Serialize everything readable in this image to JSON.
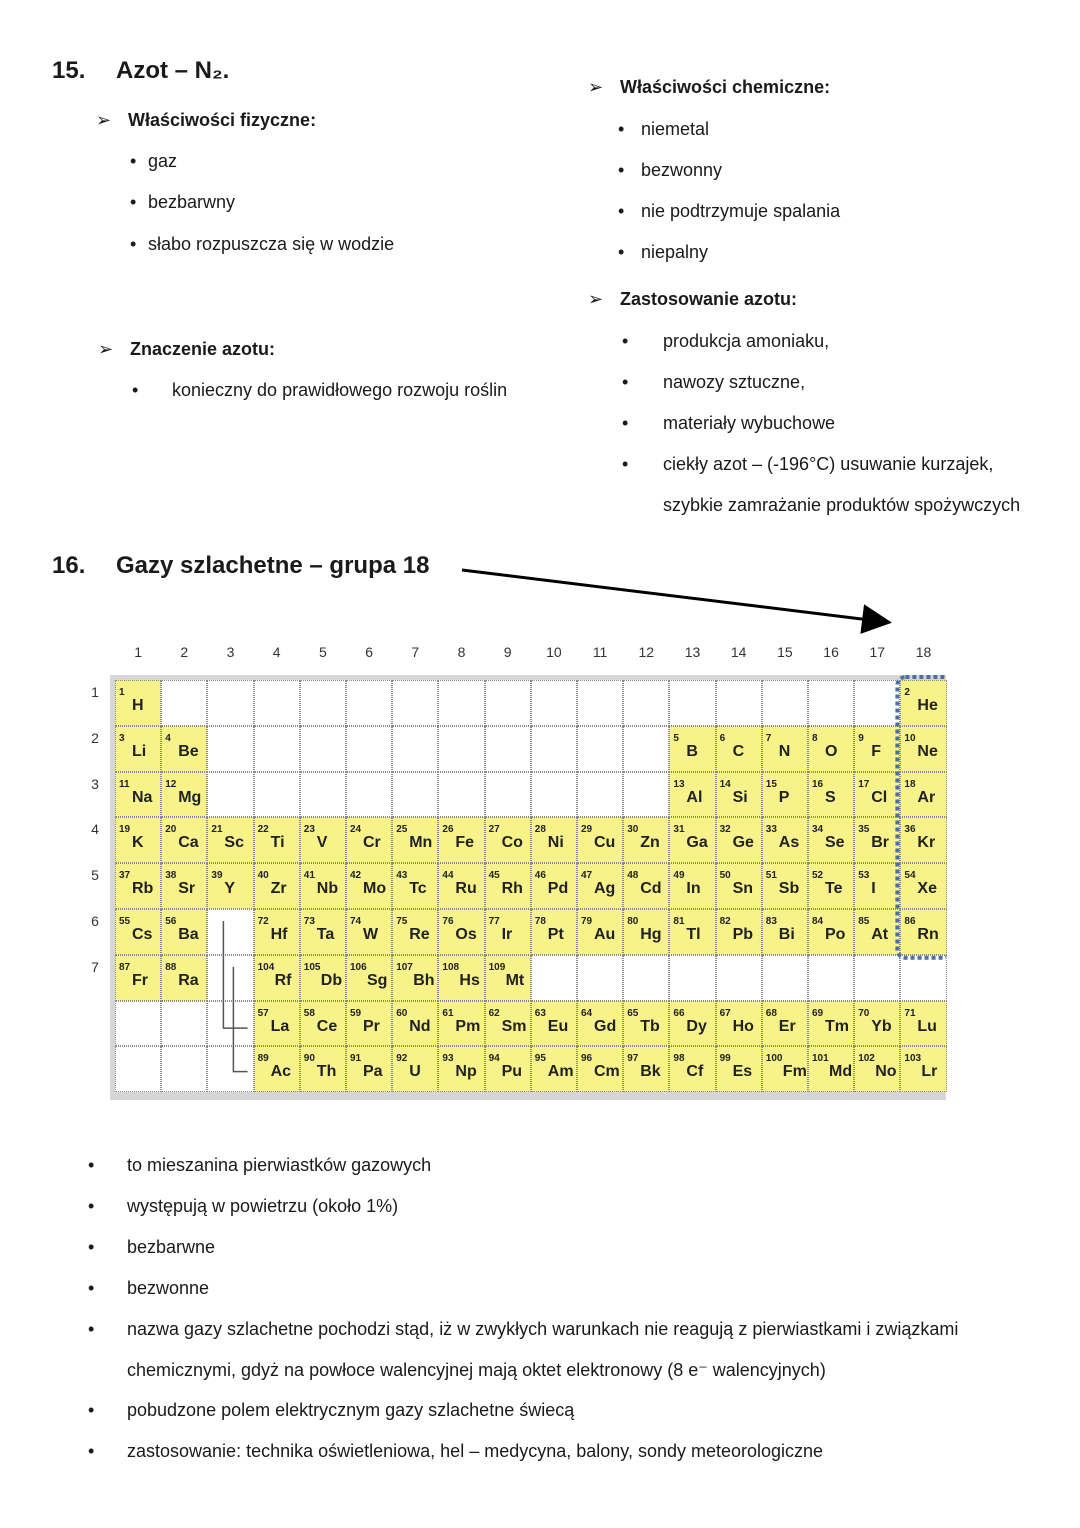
{
  "section15": {
    "number": "15.",
    "title": "Azot – N₂.",
    "physical": {
      "heading": "Właściwości fizyczne:",
      "items": [
        "gaz",
        "bezbarwny",
        "słabo rozpuszcza się w wodzie"
      ]
    },
    "significance": {
      "heading": "Znaczenie azotu:",
      "items": [
        "konieczny do prawidłowego rozwoju roślin"
      ]
    },
    "chemical": {
      "heading": "Właściwości chemiczne:",
      "items": [
        "niemetal",
        "bezwonny",
        "nie podtrzymuje spalania",
        "niepalny"
      ]
    },
    "uses": {
      "heading": "Zastosowanie azotu:",
      "items": [
        "produkcja amoniaku,",
        "nawozy sztuczne,",
        "materiały wybuchowe",
        "ciekły azot – (-196°C) usuwanie kurzajek, szybkie zamrażanie produktów spożywczych"
      ]
    }
  },
  "section16": {
    "number": "16.",
    "title": "Gazy szlachetne – grupa 18",
    "table": {
      "groups": [
        1,
        2,
        3,
        4,
        5,
        6,
        7,
        8,
        9,
        10,
        11,
        12,
        13,
        14,
        15,
        16,
        17,
        18
      ],
      "periods": [
        1,
        2,
        3,
        4,
        5,
        6,
        7
      ],
      "rows": [
        [
          {
            "number": 1,
            "symbol": "H"
          },
          null,
          null,
          null,
          null,
          null,
          null,
          null,
          null,
          null,
          null,
          null,
          null,
          null,
          null,
          null,
          null,
          {
            "number": 2,
            "symbol": "He"
          }
        ],
        [
          {
            "number": 3,
            "symbol": "Li"
          },
          {
            "number": 4,
            "symbol": "Be"
          },
          null,
          null,
          null,
          null,
          null,
          null,
          null,
          null,
          null,
          null,
          {
            "number": 5,
            "symbol": "B"
          },
          {
            "number": 6,
            "symbol": "C"
          },
          {
            "number": 7,
            "symbol": "N"
          },
          {
            "number": 8,
            "symbol": "O"
          },
          {
            "number": 9,
            "symbol": "F"
          },
          {
            "number": 10,
            "symbol": "Ne"
          }
        ],
        [
          {
            "number": 11,
            "symbol": "Na"
          },
          {
            "number": 12,
            "symbol": "Mg"
          },
          null,
          null,
          null,
          null,
          null,
          null,
          null,
          null,
          null,
          null,
          {
            "number": 13,
            "symbol": "Al"
          },
          {
            "number": 14,
            "symbol": "Si"
          },
          {
            "number": 15,
            "symbol": "P"
          },
          {
            "number": 16,
            "symbol": "S"
          },
          {
            "number": 17,
            "symbol": "Cl"
          },
          {
            "number": 18,
            "symbol": "Ar"
          }
        ],
        [
          {
            "number": 19,
            "symbol": "K"
          },
          {
            "number": 20,
            "symbol": "Ca"
          },
          {
            "number": 21,
            "symbol": "Sc"
          },
          {
            "number": 22,
            "symbol": "Ti"
          },
          {
            "number": 23,
            "symbol": "V"
          },
          {
            "number": 24,
            "symbol": "Cr"
          },
          {
            "number": 25,
            "symbol": "Mn"
          },
          {
            "number": 26,
            "symbol": "Fe"
          },
          {
            "number": 27,
            "symbol": "Co"
          },
          {
            "number": 28,
            "symbol": "Ni"
          },
          {
            "number": 29,
            "symbol": "Cu"
          },
          {
            "number": 30,
            "symbol": "Zn"
          },
          {
            "number": 31,
            "symbol": "Ga"
          },
          {
            "number": 32,
            "symbol": "Ge"
          },
          {
            "number": 33,
            "symbol": "As"
          },
          {
            "number": 34,
            "symbol": "Se"
          },
          {
            "number": 35,
            "symbol": "Br"
          },
          {
            "number": 36,
            "symbol": "Kr"
          }
        ],
        [
          {
            "number": 37,
            "symbol": "Rb"
          },
          {
            "number": 38,
            "symbol": "Sr"
          },
          {
            "number": 39,
            "symbol": "Y"
          },
          {
            "number": 40,
            "symbol": "Zr"
          },
          {
            "number": 41,
            "symbol": "Nb"
          },
          {
            "number": 42,
            "symbol": "Mo"
          },
          {
            "number": 43,
            "symbol": "Tc"
          },
          {
            "number": 44,
            "symbol": "Ru"
          },
          {
            "number": 45,
            "symbol": "Rh"
          },
          {
            "number": 46,
            "symbol": "Pd"
          },
          {
            "number": 47,
            "symbol": "Ag"
          },
          {
            "number": 48,
            "symbol": "Cd"
          },
          {
            "number": 49,
            "symbol": "In"
          },
          {
            "number": 50,
            "symbol": "Sn"
          },
          {
            "number": 51,
            "symbol": "Sb"
          },
          {
            "number": 52,
            "symbol": "Te"
          },
          {
            "number": 53,
            "symbol": "I"
          },
          {
            "number": 54,
            "symbol": "Xe"
          }
        ],
        [
          {
            "number": 55,
            "symbol": "Cs"
          },
          {
            "number": 56,
            "symbol": "Ba"
          },
          null,
          {
            "number": 72,
            "symbol": "Hf"
          },
          {
            "number": 73,
            "symbol": "Ta"
          },
          {
            "number": 74,
            "symbol": "W"
          },
          {
            "number": 75,
            "symbol": "Re"
          },
          {
            "number": 76,
            "symbol": "Os"
          },
          {
            "number": 77,
            "symbol": "Ir"
          },
          {
            "number": 78,
            "symbol": "Pt"
          },
          {
            "number": 79,
            "symbol": "Au"
          },
          {
            "number": 80,
            "symbol": "Hg"
          },
          {
            "number": 81,
            "symbol": "Tl"
          },
          {
            "number": 82,
            "symbol": "Pb"
          },
          {
            "number": 83,
            "symbol": "Bi"
          },
          {
            "number": 84,
            "symbol": "Po"
          },
          {
            "number": 85,
            "symbol": "At"
          },
          {
            "number": 86,
            "symbol": "Rn"
          }
        ],
        [
          {
            "number": 87,
            "symbol": "Fr"
          },
          {
            "number": 88,
            "symbol": "Ra"
          },
          null,
          {
            "number": 104,
            "symbol": "Rf"
          },
          {
            "number": 105,
            "symbol": "Db"
          },
          {
            "number": 106,
            "symbol": "Sg"
          },
          {
            "number": 107,
            "symbol": "Bh"
          },
          {
            "number": 108,
            "symbol": "Hs"
          },
          {
            "number": 109,
            "symbol": "Mt"
          },
          null,
          null,
          null,
          null,
          null,
          null,
          null,
          null,
          null
        ],
        [
          null,
          null,
          null,
          {
            "number": 57,
            "symbol": "La"
          },
          {
            "number": 58,
            "symbol": "Ce"
          },
          {
            "number": 59,
            "symbol": "Pr"
          },
          {
            "number": 60,
            "symbol": "Nd"
          },
          {
            "number": 61,
            "symbol": "Pm"
          },
          {
            "number": 62,
            "symbol": "Sm"
          },
          {
            "number": 63,
            "symbol": "Eu"
          },
          {
            "number": 64,
            "symbol": "Gd"
          },
          {
            "number": 65,
            "symbol": "Tb"
          },
          {
            "number": 66,
            "symbol": "Dy"
          },
          {
            "number": 67,
            "symbol": "Ho"
          },
          {
            "number": 68,
            "symbol": "Er"
          },
          {
            "number": 69,
            "symbol": "Tm"
          },
          {
            "number": 70,
            "symbol": "Yb"
          },
          {
            "number": 71,
            "symbol": "Lu"
          }
        ],
        [
          null,
          null,
          null,
          {
            "number": 89,
            "symbol": "Ac"
          },
          {
            "number": 90,
            "symbol": "Th"
          },
          {
            "number": 91,
            "symbol": "Pa"
          },
          {
            "number": 92,
            "symbol": "U"
          },
          {
            "number": 93,
            "symbol": "Np"
          },
          {
            "number": 94,
            "symbol": "Pu"
          },
          {
            "number": 95,
            "symbol": "Am"
          },
          {
            "number": 96,
            "symbol": "Cm"
          },
          {
            "number": 97,
            "symbol": "Bk"
          },
          {
            "number": 98,
            "symbol": "Cf"
          },
          {
            "number": 99,
            "symbol": "Es"
          },
          {
            "number": 100,
            "symbol": "Fm"
          },
          {
            "number": 101,
            "symbol": "Md"
          },
          {
            "number": 102,
            "symbol": "No"
          },
          {
            "number": 103,
            "symbol": "Lr"
          }
        ]
      ]
    },
    "items": [
      "to mieszanina pierwiastków gazowych",
      "występują w powietrzu (około 1%)",
      "bezbarwne",
      "bezwonne",
      "nazwa gazy szlachetne pochodzi stąd, iż w zwykłych warunkach nie reagują z pierwiastkami i związkami chemicznymi, gdyż na powłoce walencyjnej mają oktet elektronowy (8 e⁻ walencyjnych)",
      "pobudzone polem elektrycznym gazy szlachetne świecą",
      "zastosowanie:  technika oświetleniowa, hel – medycyna, balony, sondy meteorologiczne"
    ]
  }
}
